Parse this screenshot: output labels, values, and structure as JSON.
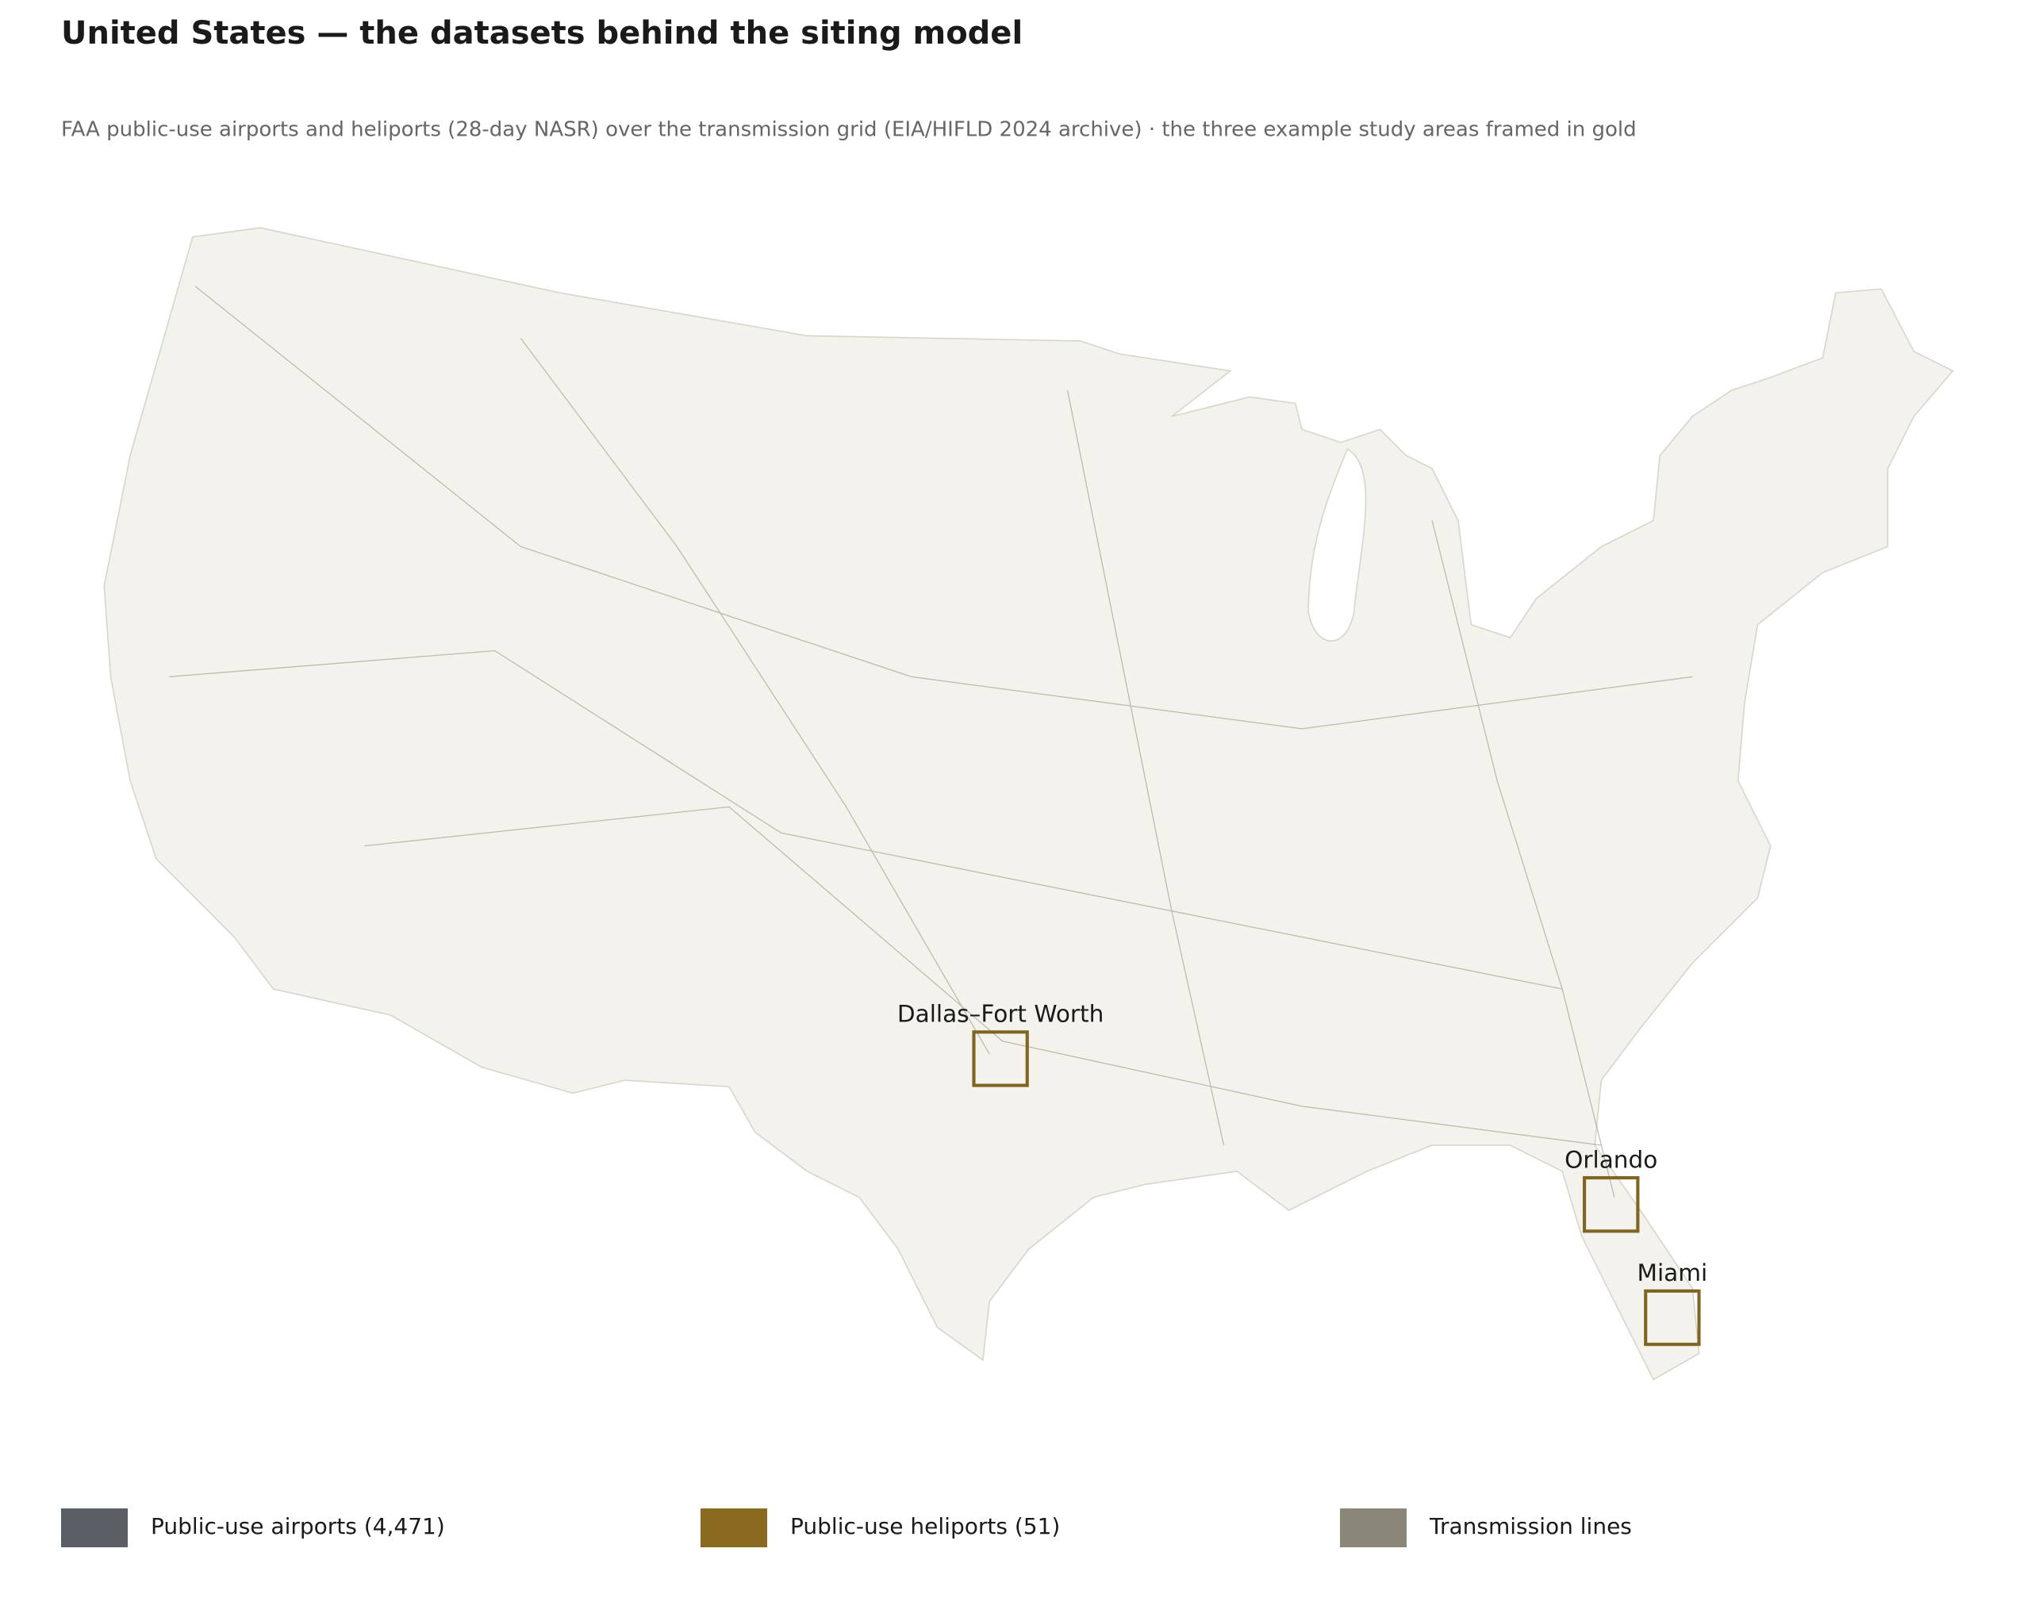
{
  "header": {
    "title": "United States — the datasets behind the siting model",
    "subtitle": "FAA public-use airports and heliports (28-day NASR) over the transmission grid (EIA/HIFLD 2024 archive) · the three example study areas framed in gold"
  },
  "map": {
    "frame_color": "#7f6521",
    "study_areas": [
      {
        "label": "Dallas–Fort Worth"
      },
      {
        "label": "Orlando"
      },
      {
        "label": "Miami"
      }
    ]
  },
  "legend": [
    {
      "label": "Public-use airports (4,471)",
      "color": "#5a5f66"
    },
    {
      "label": "Public-use heliports (51)",
      "color": "#8a6a1f"
    },
    {
      "label": "Transmission lines",
      "color": "#8a8778"
    }
  ]
}
